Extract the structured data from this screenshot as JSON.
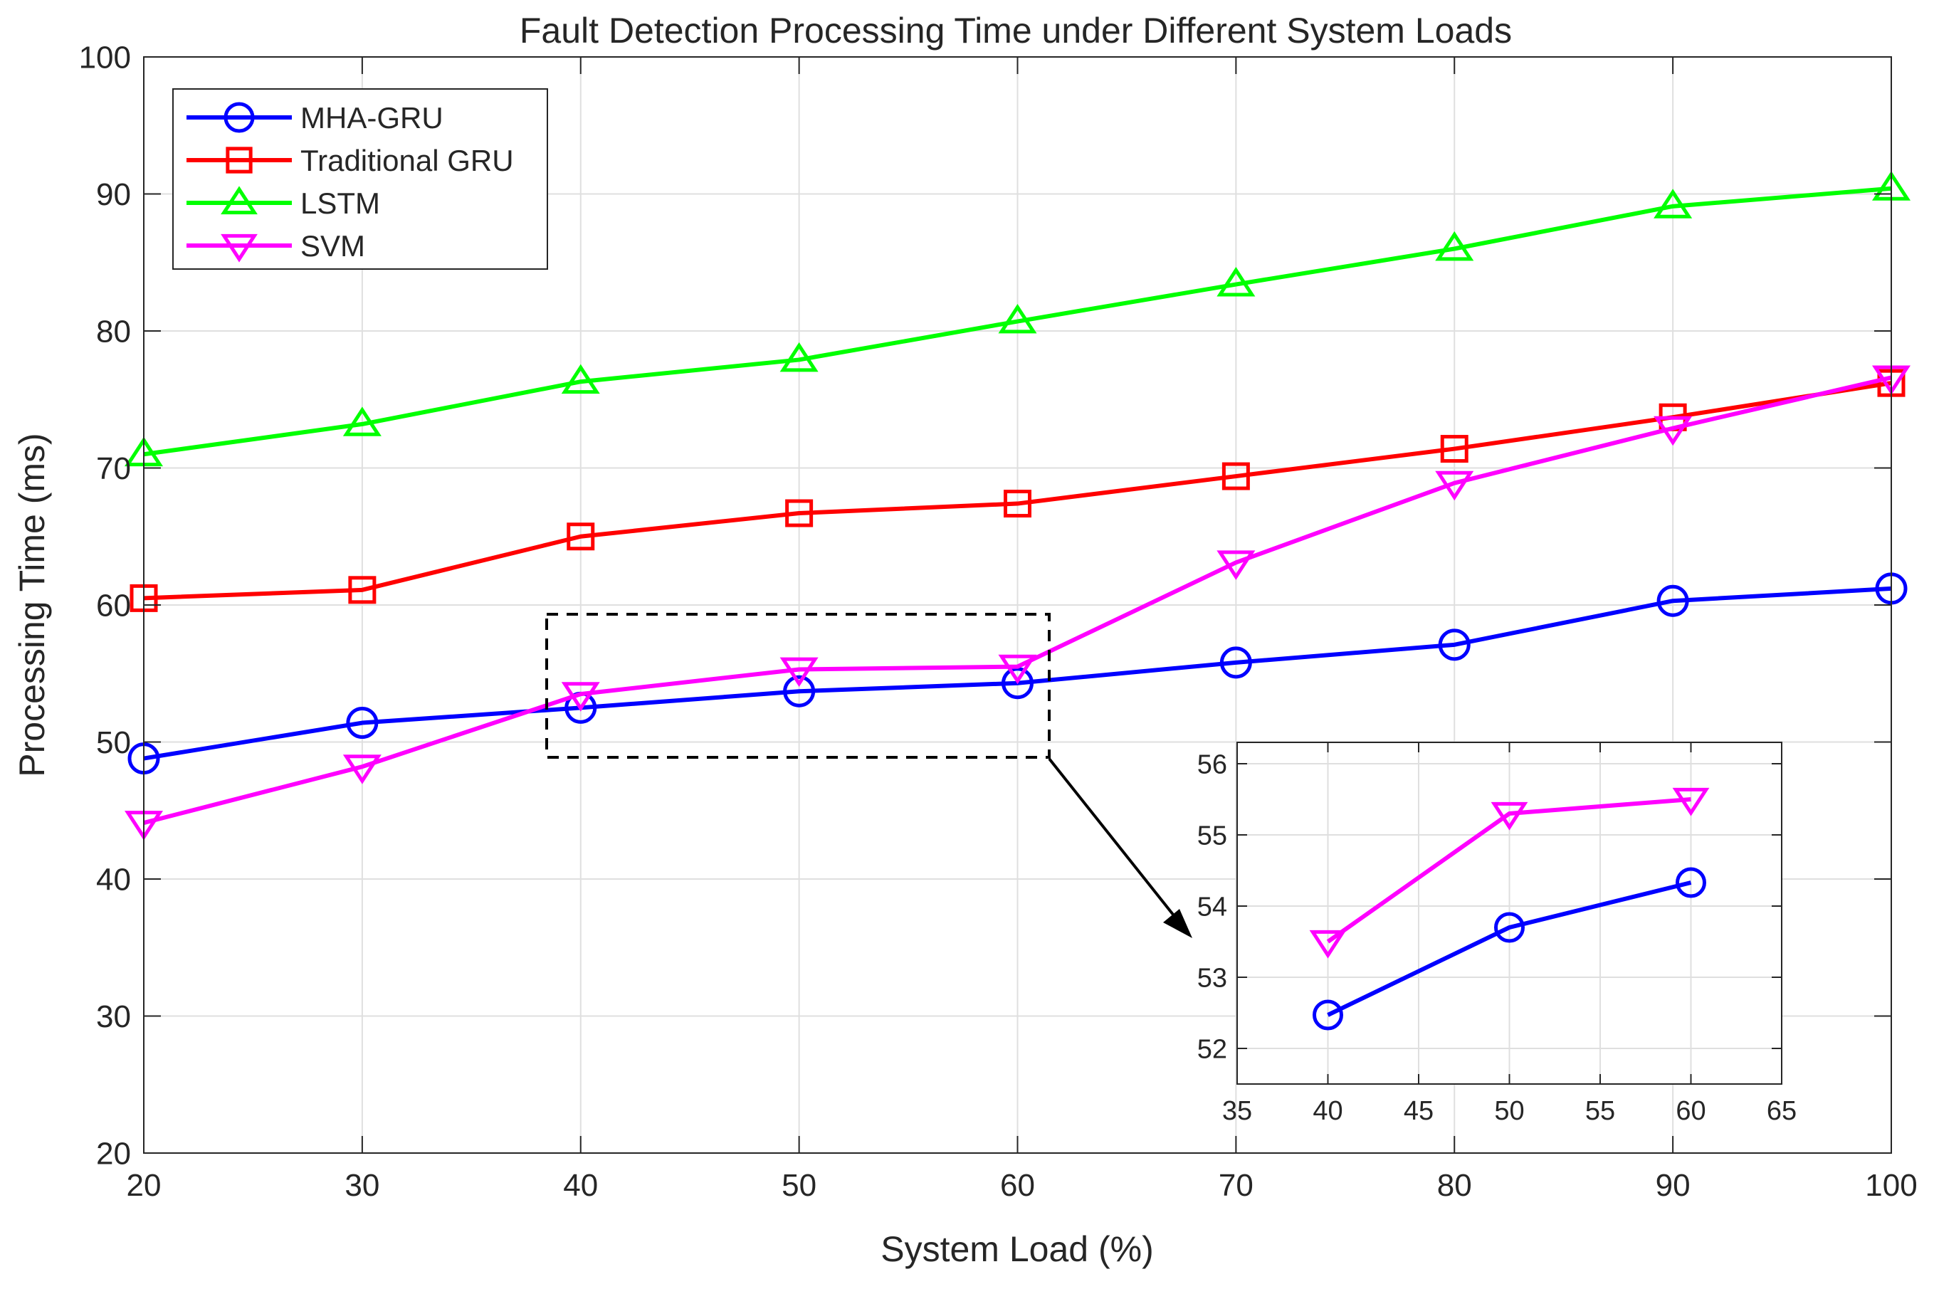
{
  "chart_data": {
    "main": {
      "type": "line",
      "title": "Fault Detection Processing Time under Different System Loads",
      "xlabel": "System Load (%)",
      "ylabel": "Processing Time (ms)",
      "x": [
        20,
        30,
        40,
        50,
        60,
        70,
        80,
        90,
        100
      ],
      "xlim": [
        20,
        100
      ],
      "ylim": [
        20,
        100
      ],
      "xticks": [
        "20",
        "30",
        "40",
        "50",
        "60",
        "70",
        "80",
        "90",
        "100"
      ],
      "yticks": [
        "20",
        "30",
        "40",
        "50",
        "60",
        "70",
        "80",
        "90",
        "100"
      ],
      "grid": true,
      "legend_position": "top-left",
      "series": [
        {
          "name": "MHA-GRU",
          "color": "#0000ff",
          "marker": "circle",
          "values": [
            48.8,
            51.4,
            52.5,
            53.7,
            54.3,
            55.8,
            57.1,
            60.3,
            61.2
          ]
        },
        {
          "name": "Traditional GRU",
          "color": "#ff0000",
          "marker": "square",
          "values": [
            60.5,
            61.1,
            65.0,
            66.7,
            67.4,
            69.4,
            71.4,
            73.7,
            76.2
          ]
        },
        {
          "name": "LSTM",
          "color": "#00ff00",
          "marker": "triangle-up",
          "values": [
            71.0,
            73.2,
            76.3,
            77.9,
            80.7,
            83.4,
            86.0,
            89.1,
            90.4
          ]
        },
        {
          "name": "SVM",
          "color": "#ff00ff",
          "marker": "triangle-down",
          "values": [
            44.1,
            48.2,
            53.5,
            55.3,
            55.5,
            63.1,
            68.9,
            72.9,
            76.6
          ]
        }
      ],
      "annotation": "dashed zoom box x 38 to 61, y 49 to 59.5 with arrow to inset"
    },
    "inset": {
      "type": "line",
      "x": [
        40,
        50,
        60
      ],
      "xlim": [
        35,
        65
      ],
      "ylim": [
        51.5,
        56.3
      ],
      "xticks": [
        "35",
        "40",
        "45",
        "50",
        "55",
        "60",
        "65"
      ],
      "yticks": [
        "52",
        "53",
        "54",
        "55",
        "56"
      ],
      "grid": true,
      "series": [
        {
          "name": "MHA-GRU",
          "color": "#0000ff",
          "marker": "circle",
          "values": [
            52.47,
            53.7,
            54.33
          ]
        },
        {
          "name": "SVM",
          "color": "#ff00ff",
          "marker": "triangle-down",
          "values": [
            53.5,
            55.3,
            55.5
          ]
        }
      ]
    }
  }
}
